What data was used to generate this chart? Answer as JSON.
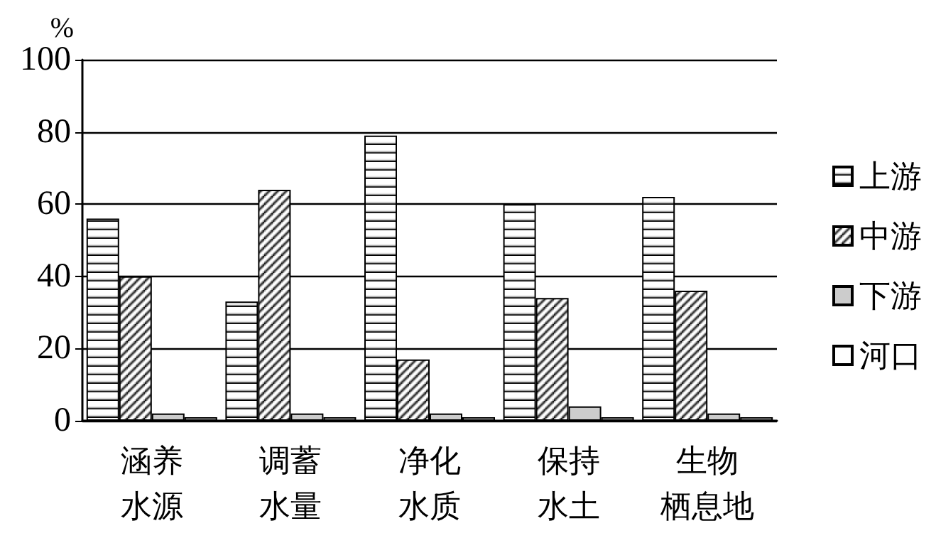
{
  "chart_data": {
    "type": "bar",
    "ylabel": "%",
    "categories": [
      "涵养水源",
      "调蓄水量",
      "净化水质",
      "保持水土",
      "生物栖息地"
    ],
    "series": [
      {
        "name": "上游",
        "color": "#000000",
        "values": [
          56,
          33,
          79,
          60,
          62
        ]
      },
      {
        "name": "中游",
        "color": "#000000",
        "values": [
          40,
          64,
          17,
          34,
          36
        ]
      },
      {
        "name": "下游",
        "color": "#cccccc",
        "values": [
          2,
          2,
          2,
          4,
          2
        ]
      },
      {
        "name": "河口",
        "color": "#ffffff",
        "values": [
          1,
          1,
          1,
          1,
          1
        ]
      }
    ],
    "ylim": [
      0,
      100
    ],
    "yticks": [
      0,
      20,
      40,
      60,
      80,
      100
    ],
    "grid": "y",
    "legend": "right"
  }
}
